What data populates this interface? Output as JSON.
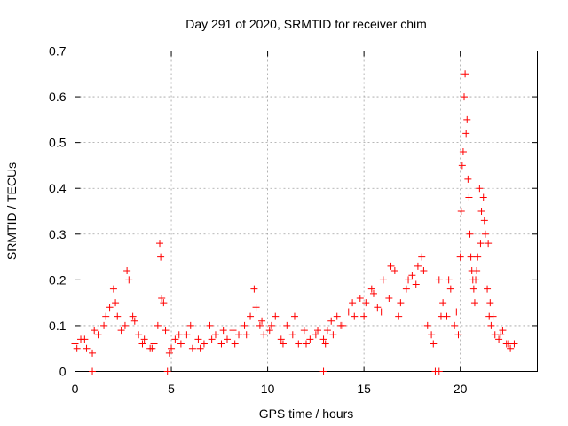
{
  "chart_data": {
    "type": "scatter",
    "title": "Day 291 of 2020, SRMTID for receiver chim",
    "xlabel": "GPS time / hours",
    "ylabel": "SRMTID / TECUs",
    "xlim": [
      0,
      24
    ],
    "ylim": [
      0,
      0.7
    ],
    "xticks": [
      0,
      5,
      10,
      15,
      20
    ],
    "yticks": [
      0,
      0.1,
      0.2,
      0.3,
      0.4,
      0.5,
      0.6,
      0.7
    ],
    "grid": true,
    "marker": "+",
    "color": "#ff0000",
    "series": [
      {
        "name": "SRMTID",
        "x": [
          0.0,
          0.3,
          0.6,
          0.9,
          1.2,
          1.5,
          1.8,
          2.0,
          2.2,
          2.4,
          2.6,
          2.8,
          3.0,
          3.3,
          3.6,
          3.9,
          4.1,
          4.3,
          4.4,
          4.45,
          4.5,
          4.7,
          4.9,
          5.2,
          5.5,
          5.8,
          6.1,
          6.4,
          6.7,
          7.0,
          7.3,
          7.6,
          7.9,
          8.2,
          8.5,
          8.8,
          9.1,
          9.4,
          9.6,
          9.8,
          10.1,
          10.4,
          10.7,
          11.0,
          11.3,
          11.6,
          11.9,
          12.2,
          12.5,
          12.9,
          13.1,
          13.3,
          13.6,
          13.9,
          14.2,
          14.5,
          14.8,
          15.1,
          15.4,
          15.7,
          16.0,
          16.3,
          16.6,
          16.9,
          17.2,
          17.5,
          17.8,
          18.0,
          18.3,
          18.6,
          18.9,
          19.1,
          19.3,
          19.5,
          19.7,
          19.9,
          20.0,
          20.1,
          20.2,
          20.3,
          20.4,
          20.5,
          20.6,
          20.7,
          20.8,
          20.9,
          21.0,
          21.1,
          21.2,
          21.3,
          21.4,
          21.5,
          21.6,
          21.8,
          22.0,
          22.2,
          22.4,
          22.6,
          22.8,
          0.1,
          0.5,
          1.0,
          1.6,
          2.1,
          2.7,
          3.1,
          3.5,
          4.0,
          4.6,
          5.0,
          5.4,
          6.0,
          6.5,
          7.1,
          7.7,
          8.3,
          8.9,
          9.3,
          9.7,
          10.2,
          10.8,
          11.4,
          12.0,
          12.6,
          13.0,
          13.4,
          13.8,
          14.4,
          15.0,
          15.5,
          15.9,
          16.4,
          16.8,
          17.3,
          17.7,
          18.1,
          18.5,
          19.0,
          19.4,
          19.8,
          20.05,
          20.15,
          20.25,
          20.35,
          20.45,
          20.55,
          20.65,
          20.75,
          20.85,
          21.05,
          21.25,
          21.45,
          21.55,
          21.7,
          22.1,
          22.5,
          0.9,
          4.8,
          12.9,
          18.7,
          18.9
        ],
        "y": [
          0.06,
          0.07,
          0.05,
          0.04,
          0.08,
          0.1,
          0.14,
          0.18,
          0.12,
          0.09,
          0.1,
          0.2,
          0.12,
          0.08,
          0.07,
          0.05,
          0.06,
          0.1,
          0.28,
          0.25,
          0.16,
          0.09,
          0.04,
          0.07,
          0.06,
          0.08,
          0.05,
          0.07,
          0.06,
          0.1,
          0.08,
          0.06,
          0.07,
          0.09,
          0.08,
          0.1,
          0.12,
          0.14,
          0.1,
          0.08,
          0.09,
          0.12,
          0.07,
          0.1,
          0.08,
          0.06,
          0.09,
          0.07,
          0.08,
          0.07,
          0.09,
          0.11,
          0.12,
          0.1,
          0.13,
          0.12,
          0.16,
          0.15,
          0.18,
          0.14,
          0.2,
          0.16,
          0.22,
          0.15,
          0.18,
          0.21,
          0.23,
          0.25,
          0.1,
          0.06,
          0.2,
          0.15,
          0.12,
          0.18,
          0.1,
          0.08,
          0.25,
          0.45,
          0.6,
          0.52,
          0.42,
          0.3,
          0.22,
          0.18,
          0.2,
          0.25,
          0.4,
          0.35,
          0.38,
          0.3,
          0.18,
          0.12,
          0.1,
          0.08,
          0.07,
          0.09,
          0.06,
          0.05,
          0.06,
          0.05,
          0.07,
          0.09,
          0.12,
          0.15,
          0.22,
          0.11,
          0.06,
          0.05,
          0.15,
          0.05,
          0.08,
          0.1,
          0.05,
          0.07,
          0.09,
          0.06,
          0.08,
          0.18,
          0.11,
          0.1,
          0.06,
          0.12,
          0.06,
          0.09,
          0.06,
          0.08,
          0.1,
          0.15,
          0.12,
          0.17,
          0.13,
          0.23,
          0.12,
          0.2,
          0.19,
          0.22,
          0.08,
          0.12,
          0.2,
          0.13,
          0.35,
          0.48,
          0.65,
          0.55,
          0.38,
          0.25,
          0.2,
          0.15,
          0.22,
          0.28,
          0.33,
          0.28,
          0.15,
          0.12,
          0.08,
          0.06,
          0.0,
          0.0,
          0.0,
          0.0,
          0.0
        ]
      }
    ]
  }
}
